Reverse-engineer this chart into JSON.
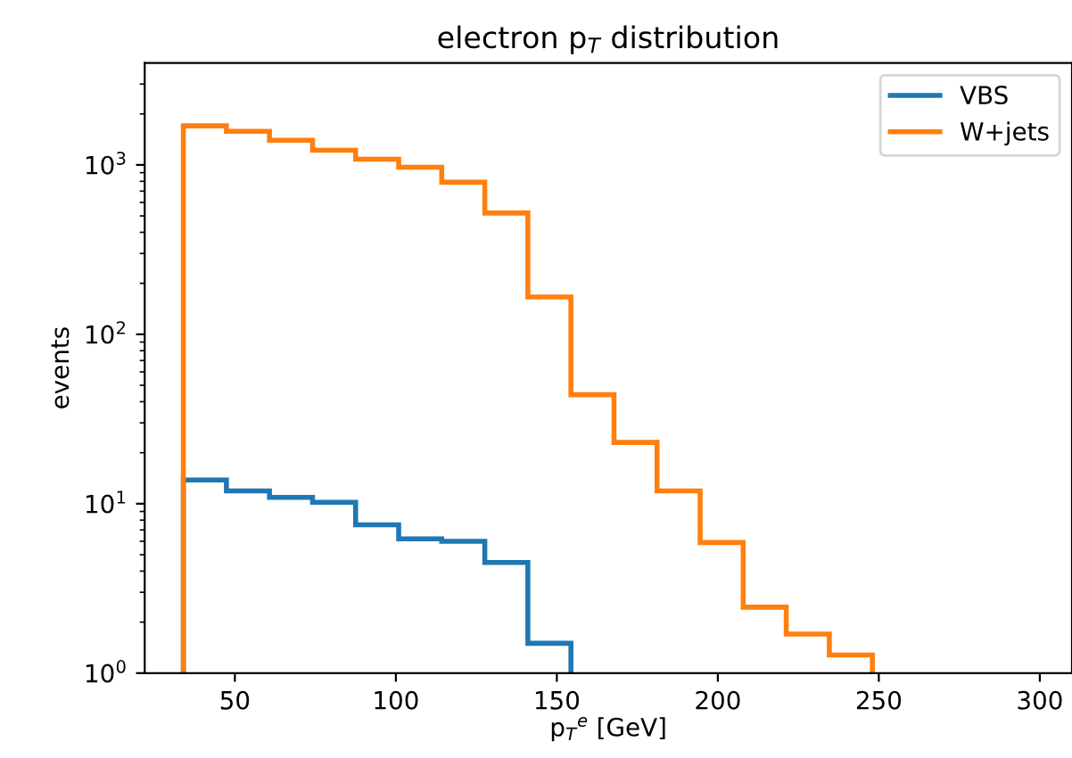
{
  "chart_data": {
    "type": "histogram",
    "title": "electron p$_{T}$ distribution",
    "xlabel": "p$_{T}$$^{e}$ [GeV]",
    "ylabel": "events",
    "bins": [
      34,
      47.375,
      60.75,
      74.125,
      87.5,
      100.875,
      114.25,
      127.625,
      141,
      154.375,
      167.75,
      181.125,
      194.5,
      207.875,
      221.25,
      234.625,
      248
    ],
    "series": [
      {
        "name": "VBS",
        "color": "#1f77b4",
        "bins": [
          34,
          47.375,
          60.75,
          74.125,
          87.5,
          100.875,
          114.25,
          127.625,
          141,
          154.375
        ],
        "values": [
          13.8,
          11.9,
          10.9,
          10.2,
          7.5,
          6.2,
          6.0,
          4.5,
          1.5
        ]
      },
      {
        "name": "W+jets",
        "color": "#ff7f0e",
        "values": [
          1700,
          1580,
          1400,
          1220,
          1080,
          970,
          790,
          520,
          166,
          44,
          23,
          11.9,
          5.9,
          2.45,
          1.7,
          1.28
        ]
      }
    ],
    "log": "y",
    "xlim": [
      22,
      310
    ],
    "xticks": [
      50,
      100,
      150,
      200,
      250,
      300
    ],
    "ylim": [
      1,
      4000
    ],
    "yticks": [
      {
        "value": 1,
        "label": "10$^{0}$"
      },
      {
        "value": 10,
        "label": "10$^{1}$"
      },
      {
        "value": 100,
        "label": "10$^{2}$"
      },
      {
        "value": 1000,
        "label": "10$^{3}$"
      }
    ],
    "grid": false,
    "legend": "top right"
  }
}
